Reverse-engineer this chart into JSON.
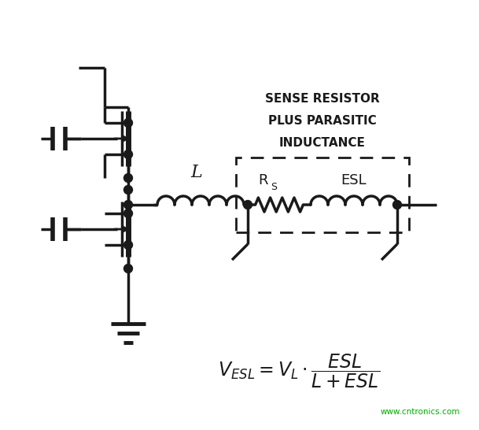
{
  "bg_color": "#ffffff",
  "line_color": "#1a1a1a",
  "label_L": "L",
  "label_RS": "R",
  "label_RS_sub": "S",
  "label_ESL_box": "ESL",
  "box_label_line1": "SENSE RESISTOR",
  "box_label_line2": "PLUS PARASITIC",
  "box_label_line3": "INDUCTANCE",
  "watermark": "www.cntronics.com",
  "watermark_color": "#00aa00",
  "figsize": [
    6.09,
    5.46
  ],
  "dpi": 100
}
